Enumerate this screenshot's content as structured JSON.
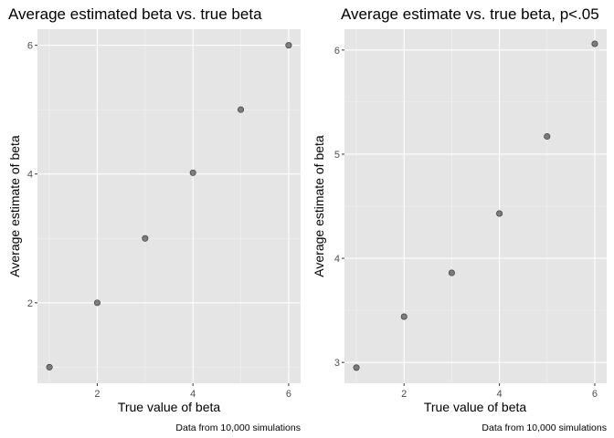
{
  "chart_data": [
    {
      "type": "scatter",
      "title": "Average estimated beta vs. true beta",
      "xlabel": "True value of beta",
      "ylabel": "Average estimate of beta",
      "caption": "Data from 10,000 simulations",
      "x": [
        1,
        2,
        3,
        4,
        5,
        6
      ],
      "y": [
        1.0,
        2.0,
        3.0,
        4.02,
        5.0,
        6.0
      ],
      "xlim": [
        0.75,
        6.25
      ],
      "ylim": [
        0.75,
        6.25
      ],
      "xticks": [
        2,
        4,
        6
      ],
      "yticks": [
        2,
        4,
        6
      ],
      "grid": true,
      "panel_background": "#e5e5e5",
      "point_color": "#555555"
    },
    {
      "type": "scatter",
      "title": "Average estimate vs. true beta, p<.05",
      "xlabel": "True value of beta",
      "ylabel": "Average estimate of beta",
      "caption": "Data from 10,000 simulations",
      "x": [
        1,
        2,
        3,
        4,
        5,
        6
      ],
      "y": [
        2.95,
        3.44,
        3.86,
        4.43,
        5.17,
        6.06
      ],
      "xlim": [
        0.75,
        6.25
      ],
      "ylim": [
        2.8,
        6.2
      ],
      "xticks": [
        2,
        4,
        6
      ],
      "yticks": [
        3,
        4,
        5,
        6
      ],
      "grid": true,
      "panel_background": "#e5e5e5",
      "point_color": "#555555"
    }
  ]
}
